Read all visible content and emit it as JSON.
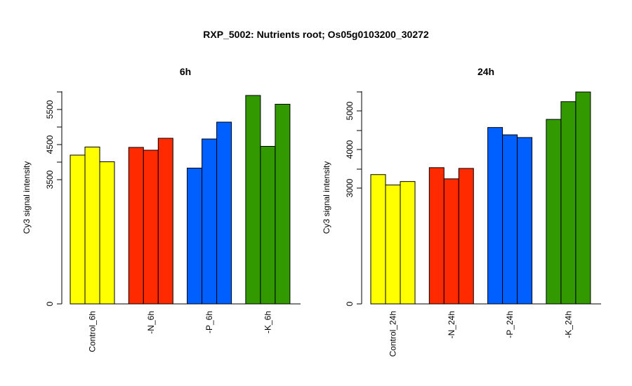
{
  "title": "RXP_5002: Nutrients root; Os05g0103200_30272",
  "chart_data": [
    {
      "type": "bar",
      "title": "6h",
      "ylabel": "Cy3 signal intensity",
      "yticks": [
        0,
        3500,
        4500,
        5500
      ],
      "groups": [
        {
          "label": "Control_6h",
          "color": "#ffff00",
          "values": [
            4200,
            4430,
            4010
          ]
        },
        {
          "label": "-N_6h",
          "color": "#ff2a00",
          "values": [
            4420,
            4340,
            4680
          ]
        },
        {
          "label": "-P_6h",
          "color": "#0060ff",
          "values": [
            3830,
            4660,
            5140
          ]
        },
        {
          "label": "-K_6h",
          "color": "#339900",
          "values": [
            5900,
            4450,
            5650
          ]
        }
      ]
    },
    {
      "type": "bar",
      "title": "24h",
      "ylabel": "Cy3 signal intensity",
      "yticks": [
        0,
        3000,
        4000,
        5000
      ],
      "groups": [
        {
          "label": "Control_24h",
          "color": "#ffff00",
          "values": [
            3350,
            3080,
            3170
          ]
        },
        {
          "label": "-N_24h",
          "color": "#ff2a00",
          "values": [
            3530,
            3240,
            3510
          ]
        },
        {
          "label": "-P_24h",
          "color": "#0060ff",
          "values": [
            4570,
            4380,
            4310
          ]
        },
        {
          "label": "-K_24h",
          "color": "#339900",
          "values": [
            4780,
            5240,
            5490
          ]
        }
      ]
    }
  ]
}
